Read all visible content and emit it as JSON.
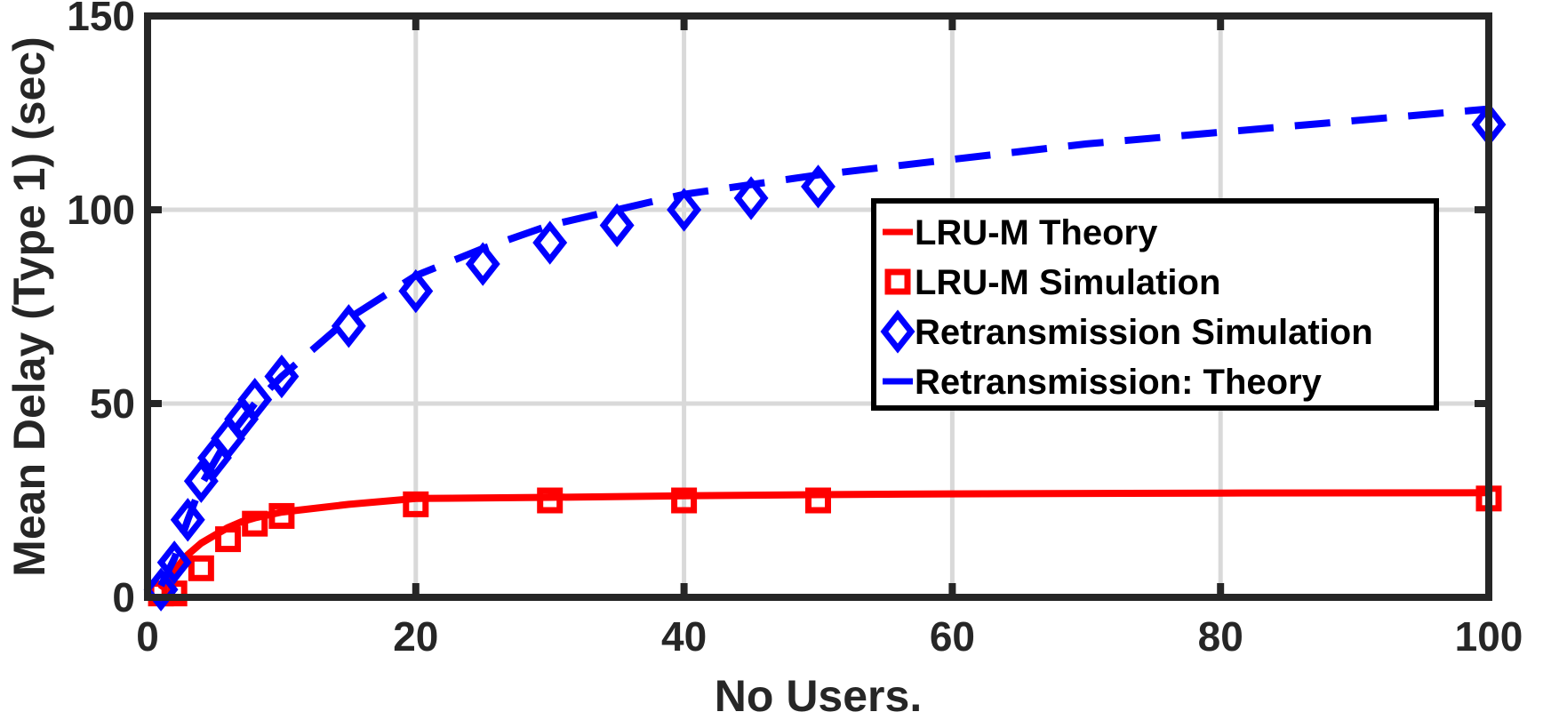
{
  "chart_data": {
    "type": "line",
    "title": "",
    "xlabel": "No Users.",
    "ylabel": "Mean Delay (Type 1) (sec)",
    "xlim": [
      0,
      100
    ],
    "ylim": [
      0,
      150
    ],
    "xticks": [
      0,
      20,
      40,
      60,
      80,
      100
    ],
    "yticks": [
      0,
      50,
      100,
      150
    ],
    "grid": true,
    "legend_position": "right",
    "series": [
      {
        "name": "LRU-M Theory",
        "style": "line",
        "color": "#ff0000",
        "x": [
          1,
          2,
          3,
          4,
          5,
          6,
          7,
          8,
          10,
          15,
          20,
          30,
          40,
          50,
          60,
          80,
          100
        ],
        "y": [
          2,
          7,
          11,
          14,
          16,
          18,
          19.5,
          20.5,
          22,
          24,
          25.5,
          25.8,
          26.2,
          26.5,
          26.7,
          26.9,
          27
        ]
      },
      {
        "name": "LRU-M Simulation",
        "style": "marker",
        "marker": "square",
        "color": "#ff0000",
        "x": [
          1,
          2,
          4,
          6,
          8,
          10,
          20,
          30,
          40,
          50,
          100
        ],
        "y": [
          1,
          1,
          7.5,
          15,
          19,
          21,
          24,
          25,
          25,
          25,
          25.5
        ]
      },
      {
        "name": "Retransmission Simulation",
        "style": "marker",
        "marker": "diamond",
        "color": "#0000ff",
        "x": [
          1,
          2,
          3,
          4,
          5,
          6,
          7,
          8,
          10,
          15,
          20,
          25,
          30,
          35,
          40,
          45,
          50,
          100
        ],
        "y": [
          2,
          9,
          20,
          30,
          36,
          41,
          46,
          51,
          57,
          70,
          79,
          86,
          91.5,
          96,
          100,
          103,
          106,
          122
        ]
      },
      {
        "name": "Retransmission: Theory",
        "style": "dashed",
        "color": "#0000ff",
        "x": [
          1,
          2,
          3,
          4,
          5,
          6,
          8,
          10,
          15,
          20,
          25,
          30,
          40,
          50,
          60,
          70,
          80,
          90,
          100
        ],
        "y": [
          3,
          10,
          20,
          29,
          35,
          41,
          50,
          57,
          72,
          83,
          90,
          96,
          104,
          109,
          113,
          117,
          120,
          123,
          126
        ]
      }
    ]
  }
}
